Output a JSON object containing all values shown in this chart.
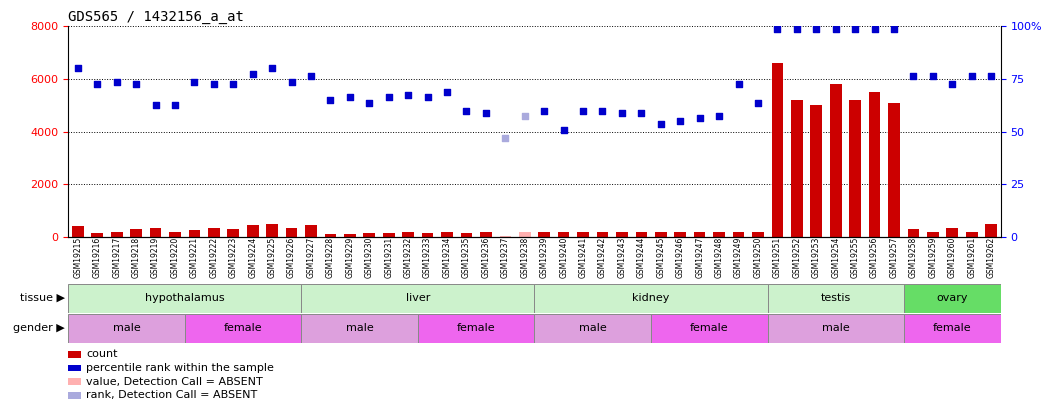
{
  "title": "GDS565 / 1432156_a_at",
  "samples": [
    "GSM19215",
    "GSM19216",
    "GSM19217",
    "GSM19218",
    "GSM19219",
    "GSM19220",
    "GSM19221",
    "GSM19222",
    "GSM19223",
    "GSM19224",
    "GSM19225",
    "GSM19226",
    "GSM19227",
    "GSM19228",
    "GSM19229",
    "GSM19230",
    "GSM19231",
    "GSM19232",
    "GSM19233",
    "GSM19234",
    "GSM19235",
    "GSM19236",
    "GSM19237",
    "GSM19238",
    "GSM19239",
    "GSM19240",
    "GSM19241",
    "GSM19242",
    "GSM19243",
    "GSM19244",
    "GSM19245",
    "GSM19246",
    "GSM19247",
    "GSM19248",
    "GSM19249",
    "GSM19250",
    "GSM19251",
    "GSM19252",
    "GSM19253",
    "GSM19254",
    "GSM19255",
    "GSM19256",
    "GSM19257",
    "GSM19258",
    "GSM19259",
    "GSM19260",
    "GSM19261",
    "GSM19262"
  ],
  "bar_values": [
    400,
    150,
    200,
    300,
    350,
    200,
    250,
    350,
    300,
    450,
    500,
    350,
    450,
    100,
    100,
    150,
    150,
    200,
    150,
    200,
    150,
    200,
    50,
    200,
    200,
    200,
    200,
    200,
    200,
    200,
    200,
    200,
    200,
    200,
    200,
    200,
    6600,
    5200,
    5000,
    5800,
    5200,
    5500,
    5100,
    300,
    200,
    350,
    200,
    500
  ],
  "dot_values": [
    6400,
    5800,
    5900,
    5800,
    5000,
    5000,
    5900,
    5800,
    5800,
    6200,
    6400,
    5900,
    6100,
    5200,
    5300,
    5100,
    5300,
    5400,
    5300,
    5500,
    4800,
    4700,
    3750,
    4600,
    4800,
    4050,
    4800,
    4800,
    4700,
    4700,
    4300,
    4400,
    4500,
    4600,
    5800,
    5100,
    7900,
    7900,
    7900,
    7900,
    7900,
    7900,
    7900,
    6100,
    6100,
    5800,
    6100,
    6100
  ],
  "absent_indices": [
    22,
    23
  ],
  "absent_bar_values": [
    50,
    200
  ],
  "absent_dot_values": [
    3750,
    4600
  ],
  "ylim_left": [
    0,
    8000
  ],
  "yticks_left": [
    0,
    2000,
    4000,
    6000,
    8000
  ],
  "left_tick_labels": [
    "0",
    "2000",
    "4000",
    "6000",
    "8000"
  ],
  "right_tick_labels": [
    "0",
    "25",
    "50",
    "75",
    "100%"
  ],
  "tissue_groups": [
    {
      "label": "hypothalamus",
      "start": 0,
      "end": 11,
      "color": "#ccf2cc"
    },
    {
      "label": "liver",
      "start": 12,
      "end": 23,
      "color": "#ccf2cc"
    },
    {
      "label": "kidney",
      "start": 24,
      "end": 35,
      "color": "#ccf2cc"
    },
    {
      "label": "testis",
      "start": 36,
      "end": 42,
      "color": "#ccf2cc"
    },
    {
      "label": "ovary",
      "start": 43,
      "end": 47,
      "color": "#66dd66"
    }
  ],
  "gender_groups": [
    {
      "label": "male",
      "start": 0,
      "end": 5,
      "color": "#dda0dd"
    },
    {
      "label": "female",
      "start": 6,
      "end": 11,
      "color": "#ee66ee"
    },
    {
      "label": "male",
      "start": 12,
      "end": 17,
      "color": "#dda0dd"
    },
    {
      "label": "female",
      "start": 18,
      "end": 23,
      "color": "#ee66ee"
    },
    {
      "label": "male",
      "start": 24,
      "end": 29,
      "color": "#dda0dd"
    },
    {
      "label": "female",
      "start": 30,
      "end": 35,
      "color": "#ee66ee"
    },
    {
      "label": "male",
      "start": 36,
      "end": 42,
      "color": "#dda0dd"
    },
    {
      "label": "female",
      "start": 43,
      "end": 47,
      "color": "#ee66ee"
    }
  ],
  "bar_color": "#cc0000",
  "dot_color": "#0000cc",
  "absent_bar_color": "#ffb0b0",
  "absent_dot_color": "#aaaadd",
  "chart_bg": "#ffffff",
  "grid_color": "#000000",
  "legend_items": [
    {
      "label": "count",
      "color": "#cc0000"
    },
    {
      "label": "percentile rank within the sample",
      "color": "#0000cc"
    },
    {
      "label": "value, Detection Call = ABSENT",
      "color": "#ffb0b0"
    },
    {
      "label": "rank, Detection Call = ABSENT",
      "color": "#aaaadd"
    }
  ]
}
